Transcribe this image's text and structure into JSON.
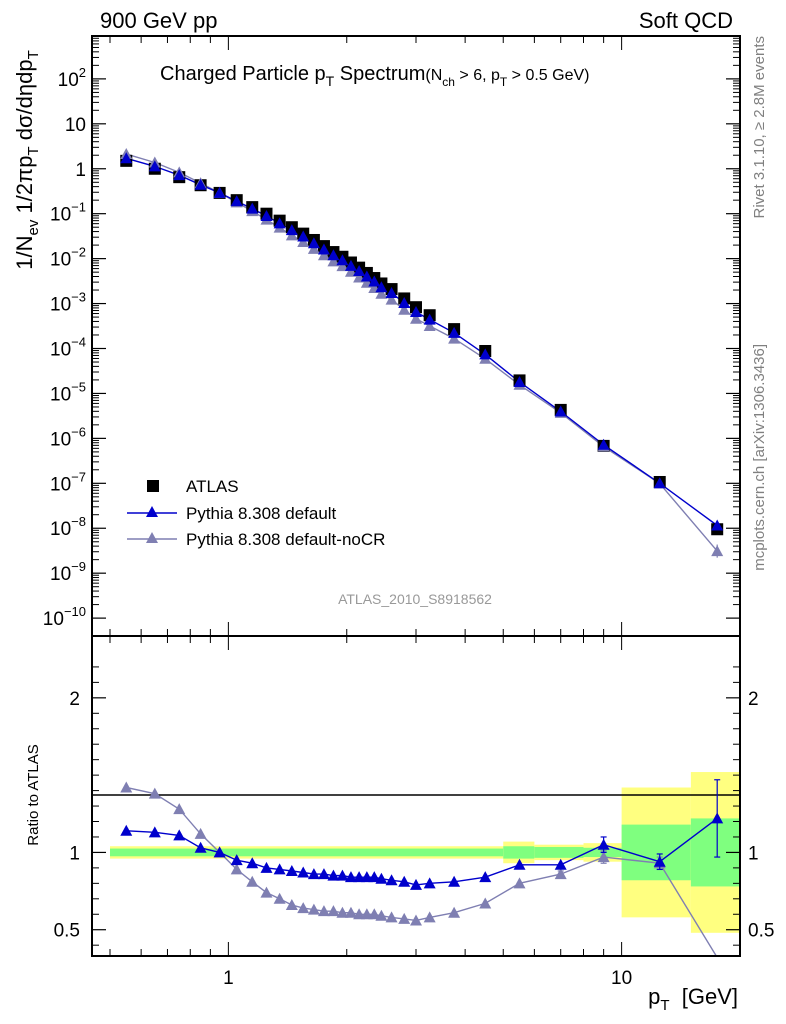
{
  "header": {
    "left": "900 GeV pp",
    "right": "Soft QCD"
  },
  "side_labels": {
    "rivet": "Rivet 3.1.10, ≥ 2.8M events",
    "mcplots": "mcplots.cern.ch [arXiv:1306.3436]"
  },
  "chart_data": [
    {
      "type": "scatter",
      "title_main": "Charged Particle p",
      "title_main_sub": "T",
      "title_main_tail": " Spectrum",
      "title_cut": "(N",
      "title_cut_sub1": "ch",
      "title_cut_mid": " > 6, p",
      "title_cut_sub2": "T",
      "title_cut_tail": " > 0.5 GeV)",
      "ylabel": "1/N_ev 1/2πp_T dσ/dηdp_T",
      "ylabel_parts": [
        "1/N",
        "ev",
        " 1/2πp",
        "T",
        " dσ/dηdp",
        "T"
      ],
      "xlabel_parts": [
        "p",
        "T",
        "  [GeV]"
      ],
      "analysis_tag": "ATLAS_2010_S8918562",
      "x_scale": "log",
      "y_scale": "log",
      "xlim": [
        0.45,
        20
      ],
      "ylim": [
        4e-11,
        900
      ],
      "y_tick_exponents": [
        -10,
        -9,
        -8,
        -7,
        -6,
        -5,
        -4,
        -3,
        -2,
        -1,
        0,
        1,
        2
      ],
      "y_tick_labels": {
        "-10": "10^-10",
        "-9": "10^-9",
        "-8": "10^-8",
        "-7": "10^-7",
        "-6": "10^-6",
        "-5": "10^-5",
        "-4": "10^-4",
        "-3": "10^-3",
        "-2": "10^-2",
        "-1": "10^-1",
        "0": "1",
        "1": "10",
        "2": "10^2"
      },
      "legend_placement": "bottom-left",
      "series": [
        {
          "name": "ATLAS",
          "color": "#000000",
          "marker": "square",
          "x": [
            0.55,
            0.65,
            0.75,
            0.85,
            0.95,
            1.05,
            1.15,
            1.25,
            1.35,
            1.45,
            1.55,
            1.65,
            1.75,
            1.85,
            1.95,
            2.05,
            2.15,
            2.25,
            2.35,
            2.45,
            2.6,
            2.8,
            3.0,
            3.25,
            3.75,
            4.5,
            5.5,
            7.0,
            9.0,
            12.5,
            17.5
          ],
          "y": [
            1.5,
            1.0,
            0.65,
            0.43,
            0.29,
            0.2,
            0.14,
            0.1,
            0.07,
            0.05,
            0.036,
            0.026,
            0.019,
            0.014,
            0.011,
            0.0082,
            0.0063,
            0.0048,
            0.0037,
            0.0028,
            0.0021,
            0.0013,
            0.00083,
            0.00055,
            0.00027,
            8.8e-05,
            1.95e-05,
            4.3e-06,
            6.8e-07,
            1.07e-07,
            9.5e-09
          ]
        },
        {
          "name": "Pythia 8.308 default",
          "color": "#0000cc",
          "marker": "triangle",
          "x": [
            0.55,
            0.65,
            0.75,
            0.85,
            0.95,
            1.05,
            1.15,
            1.25,
            1.35,
            1.45,
            1.55,
            1.65,
            1.75,
            1.85,
            1.95,
            2.05,
            2.15,
            2.25,
            2.35,
            2.45,
            2.6,
            2.8,
            3.0,
            3.25,
            3.75,
            4.5,
            5.5,
            7.0,
            9.0,
            12.5,
            17.5
          ],
          "y": [
            1.71,
            1.13,
            0.72,
            0.44,
            0.29,
            0.19,
            0.13,
            0.089,
            0.061,
            0.043,
            0.031,
            0.022,
            0.016,
            0.0119,
            0.0092,
            0.0069,
            0.0053,
            0.004,
            0.0031,
            0.0023,
            0.00172,
            0.00103,
            0.00065,
            0.00044,
            0.000223,
            7.4e-05,
            1.8e-05,
            3.96e-06,
            7.2e-07,
            1e-07,
            1.15e-08
          ]
        },
        {
          "name": "Pythia 8.308 default-noCR",
          "color": "#7f7fb2",
          "marker": "triangle",
          "x": [
            0.55,
            0.65,
            0.75,
            0.85,
            0.95,
            1.05,
            1.15,
            1.25,
            1.35,
            1.45,
            1.55,
            1.65,
            1.75,
            1.85,
            1.95,
            2.05,
            2.15,
            2.25,
            2.35,
            2.45,
            2.6,
            2.8,
            3.0,
            3.25,
            3.75,
            4.5,
            5.5,
            7.0,
            9.0,
            12.5,
            17.5
          ],
          "y": [
            2.13,
            1.38,
            0.83,
            0.48,
            0.29,
            0.178,
            0.114,
            0.074,
            0.049,
            0.033,
            0.0235,
            0.0165,
            0.0119,
            0.0087,
            0.0068,
            0.0051,
            0.0038,
            0.0029,
            0.00222,
            0.00165,
            0.00122,
            0.00073,
            0.00046,
            0.000317,
            0.000166,
            5.9e-05,
            1.56e-05,
            3.7e-06,
            6.6e-07,
            9.9e-08,
            3.1e-09
          ]
        }
      ]
    },
    {
      "type": "scatter",
      "ylabel": "Ratio to ATLAS",
      "x_scale": "log",
      "y_scale": "linear",
      "xlim": [
        0.45,
        20
      ],
      "ylim": [
        0.33,
        2.4
      ],
      "y_tick_values": [
        0.5,
        1,
        2
      ],
      "y_tick_labels": [
        "0.5",
        "1",
        "2"
      ],
      "x_tick_values": [
        1,
        10
      ],
      "x_tick_labels": [
        "1",
        "10"
      ],
      "band_colors": {
        "stat": "#7fff7f",
        "syst": "#ffff80"
      },
      "bands": [
        {
          "x": [
            0.5,
            5.0
          ],
          "stat": 0.025,
          "total": 0.04
        },
        {
          "x": [
            5.0,
            6.0
          ],
          "stat": 0.04,
          "total": 0.07
        },
        {
          "x": [
            6.0,
            8.0
          ],
          "stat": 0.035,
          "total": 0.05
        },
        {
          "x": [
            8.0,
            10.0
          ],
          "stat": 0.03,
          "total": 0.06
        },
        {
          "x": [
            10.0,
            15.0
          ],
          "stat": 0.18,
          "total": 0.42
        },
        {
          "x": [
            15.0,
            20.0
          ],
          "stat": 0.22,
          "total": 0.52
        }
      ],
      "series": [
        {
          "name": "Pythia 8.308 default",
          "color": "#0000cc",
          "marker": "triangle",
          "x": [
            0.55,
            0.65,
            0.75,
            0.85,
            0.95,
            1.05,
            1.15,
            1.25,
            1.35,
            1.45,
            1.55,
            1.65,
            1.75,
            1.85,
            1.95,
            2.05,
            2.15,
            2.25,
            2.35,
            2.45,
            2.6,
            2.8,
            3.0,
            3.25,
            3.75,
            4.5,
            5.5,
            7.0,
            9.0,
            12.5,
            17.5
          ],
          "y": [
            1.14,
            1.13,
            1.11,
            1.03,
            1.0,
            0.95,
            0.93,
            0.9,
            0.89,
            0.88,
            0.87,
            0.86,
            0.86,
            0.85,
            0.85,
            0.84,
            0.84,
            0.84,
            0.84,
            0.83,
            0.82,
            0.81,
            0.79,
            0.8,
            0.81,
            0.84,
            0.92,
            0.92,
            1.05,
            0.94,
            1.22
          ],
          "yerr": [
            0,
            0,
            0,
            0,
            0,
            0,
            0,
            0,
            0,
            0,
            0,
            0,
            0,
            0,
            0,
            0,
            0,
            0,
            0,
            0,
            0,
            0,
            0,
            0,
            0,
            0,
            0,
            0,
            0.05,
            0.05,
            0.25
          ]
        },
        {
          "name": "Pythia 8.308 default-noCR",
          "color": "#7f7fb2",
          "marker": "triangle",
          "x": [
            0.55,
            0.65,
            0.75,
            0.85,
            0.95,
            1.05,
            1.15,
            1.25,
            1.35,
            1.45,
            1.55,
            1.65,
            1.75,
            1.85,
            1.95,
            2.05,
            2.15,
            2.25,
            2.35,
            2.45,
            2.6,
            2.8,
            3.0,
            3.25,
            3.75,
            4.5,
            5.5,
            7.0,
            9.0,
            12.5,
            17.5
          ],
          "y": [
            1.42,
            1.38,
            1.28,
            1.12,
            1.0,
            0.89,
            0.81,
            0.74,
            0.7,
            0.66,
            0.64,
            0.63,
            0.62,
            0.62,
            0.61,
            0.61,
            0.6,
            0.6,
            0.6,
            0.59,
            0.58,
            0.57,
            0.56,
            0.58,
            0.61,
            0.67,
            0.8,
            0.86,
            0.97,
            0.93,
            0.32
          ],
          "yerr": [
            0,
            0,
            0,
            0,
            0,
            0,
            0,
            0,
            0,
            0,
            0,
            0,
            0,
            0,
            0,
            0,
            0,
            0,
            0,
            0,
            0,
            0,
            0,
            0,
            0,
            0,
            0,
            0.02,
            0.04,
            0.04,
            0.0
          ]
        }
      ]
    }
  ],
  "legend": {
    "entries": [
      "ATLAS",
      "Pythia 8.308 default",
      "Pythia 8.308 default-noCR"
    ]
  }
}
